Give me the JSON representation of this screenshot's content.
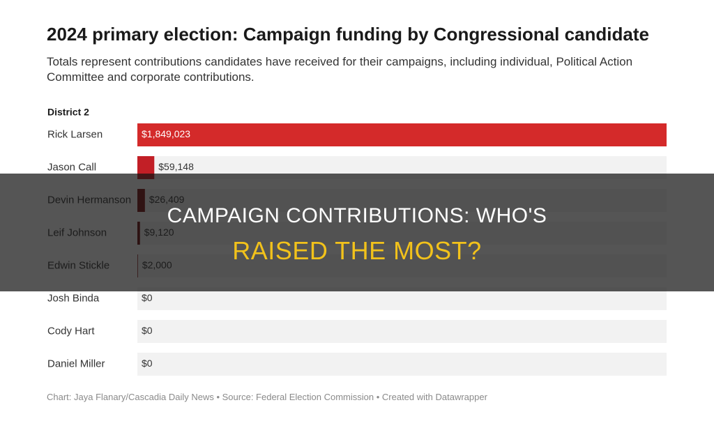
{
  "chart_data": {
    "type": "hbar",
    "title": "2024 primary election: Campaign funding by Congressional candidate",
    "subtitle": "Totals represent contributions candidates have received for their campaigns, including individual, Political Action Committee and corporate contributions.",
    "group_label": "District 2",
    "categories": [
      "Rick Larsen",
      "Jason Call",
      "Devin Hermanson",
      "Leif Johnson",
      "Edwin Stickle",
      "Josh Binda",
      "Cody Hart",
      "Daniel Miller"
    ],
    "values": [
      1849023,
      59148,
      26409,
      9120,
      2000,
      0,
      0,
      0
    ],
    "value_labels": [
      "$1,849,023",
      "$59,148",
      "$26,409",
      "$9,120",
      "$2,000",
      "$0",
      "$0",
      "$0"
    ],
    "colors": [
      "#d42a2a",
      "#c21f26",
      "#7c1212",
      "#6e0f0f",
      "#8c1c1c",
      "#8c1c1c",
      "#8c1c1c",
      "#8c1c1c"
    ],
    "xlim": [
      0,
      1849023
    ],
    "footer": "Chart: Jaya Flanary/Cascadia Daily News • Source: Federal Election Commission • Created with Datawrapper"
  },
  "overlay": {
    "line1": "CAMPAIGN CONTRIBUTIONS: WHO'S",
    "line2": "RAISED THE MOST?"
  }
}
